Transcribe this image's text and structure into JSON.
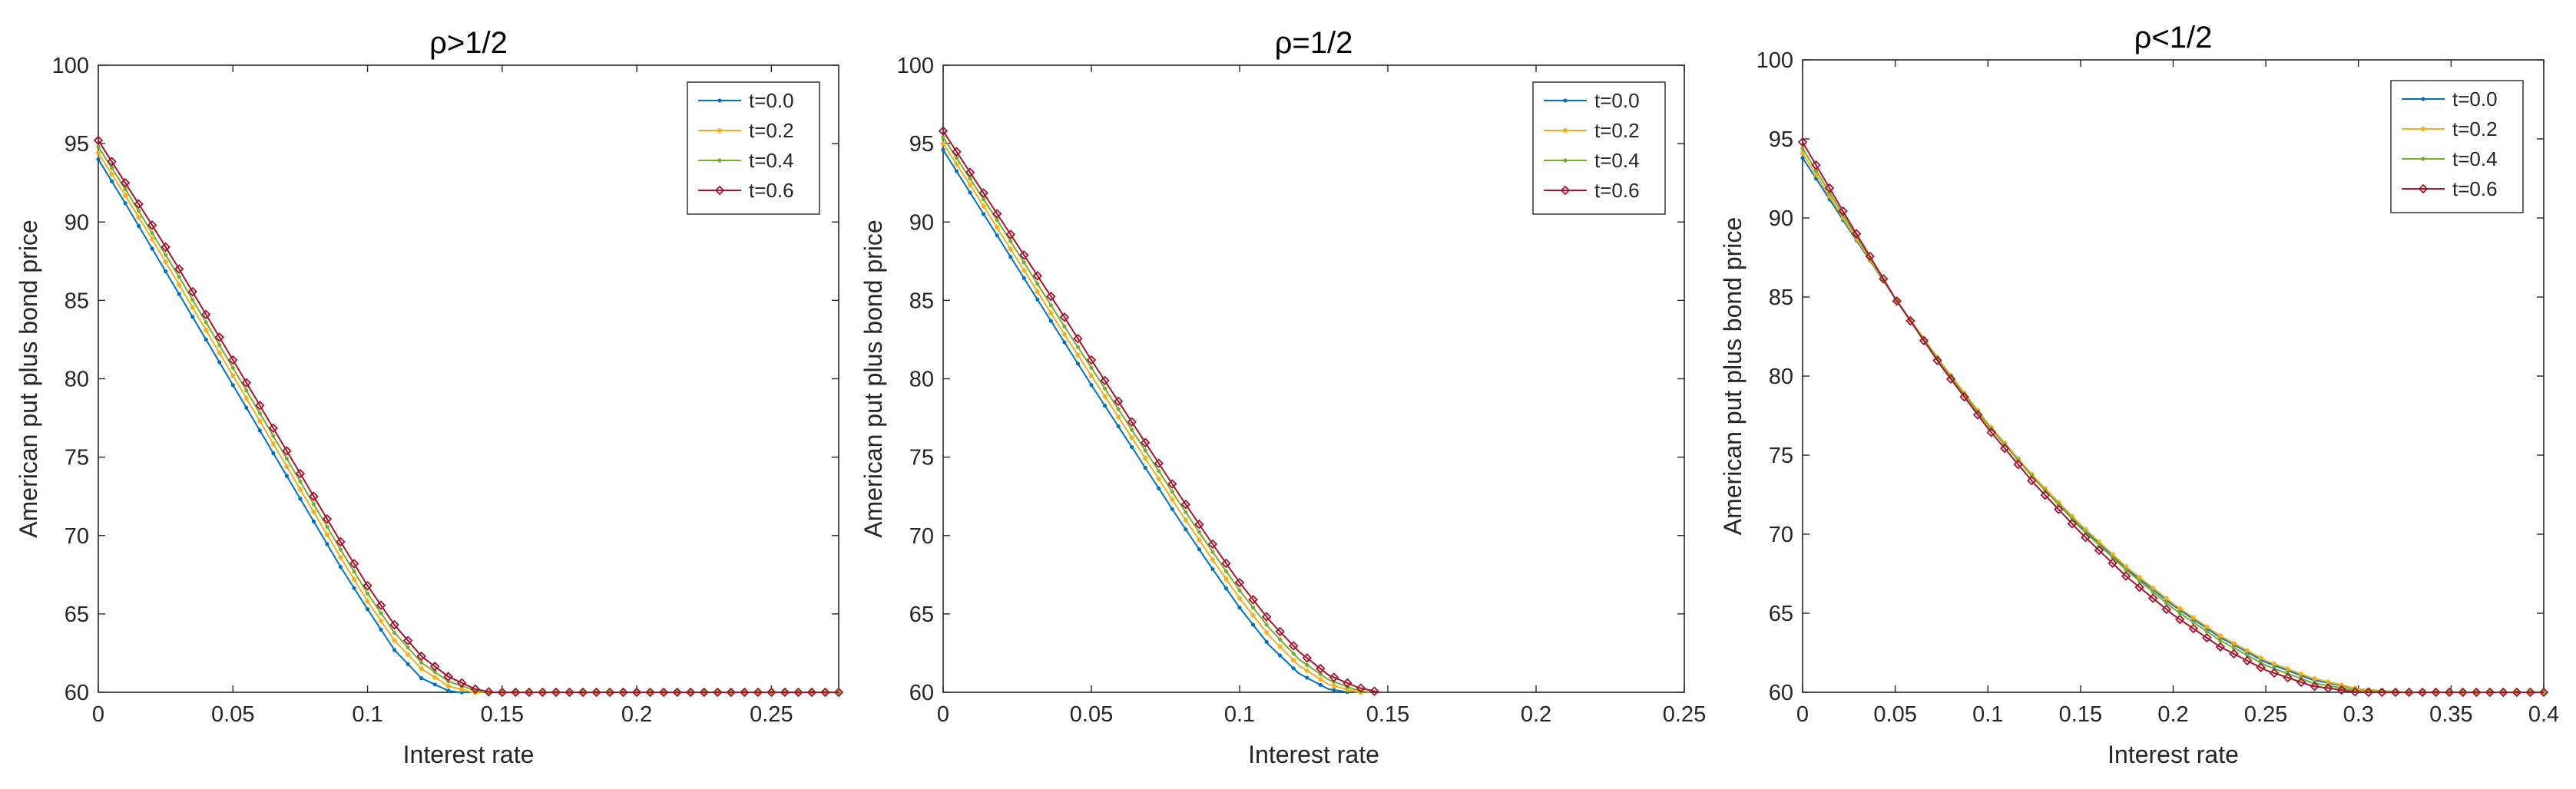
{
  "chart_data": [
    {
      "type": "line",
      "title": "ρ>1/2",
      "xlabel": "Interest rate",
      "ylabel": "American put plus bond price",
      "xlim": [
        0,
        0.275
      ],
      "ylim": [
        60,
        100
      ],
      "xticks": [
        0,
        0.05,
        0.1,
        0.15,
        0.2,
        0.25
      ],
      "xtick_labels": [
        "0",
        "0.05",
        "0.1",
        "0.15",
        "0.2",
        "0.25"
      ],
      "yticks": [
        60,
        65,
        70,
        75,
        80,
        85,
        90,
        95,
        100
      ],
      "ytick_labels": [
        "60",
        "65",
        "70",
        "75",
        "80",
        "85",
        "90",
        "95",
        "100"
      ],
      "legend_position": "top-right",
      "grid": false,
      "series": [
        {
          "name": "t=0.0",
          "color": "#0072BD",
          "marker": "point",
          "x": [
            0,
            0.01,
            0.02,
            0.03,
            0.04,
            0.05,
            0.06,
            0.07,
            0.08,
            0.09,
            0.1,
            0.11,
            0.12,
            0.13,
            0.134,
            0.14,
            0.15,
            0.2,
            0.25,
            0.275
          ],
          "y": [
            94.0,
            91.2,
            88.3,
            85.4,
            82.5,
            79.6,
            76.7,
            73.8,
            70.9,
            68.0,
            65.3,
            62.7,
            60.9,
            60.1,
            60.0,
            60.0,
            60.0,
            60.0,
            60.0,
            60.0
          ]
        },
        {
          "name": "t=0.2",
          "color": "#EDB120",
          "marker": "asterisk",
          "x": [
            0,
            0.01,
            0.02,
            0.03,
            0.04,
            0.05,
            0.06,
            0.07,
            0.08,
            0.09,
            0.1,
            0.11,
            0.12,
            0.13,
            0.139,
            0.15,
            0.2,
            0.25,
            0.275
          ],
          "y": [
            94.4,
            91.7,
            88.9,
            86.0,
            83.1,
            80.2,
            77.3,
            74.4,
            71.5,
            68.6,
            65.8,
            63.3,
            61.5,
            60.4,
            60.0,
            60.0,
            60.0,
            60.0,
            60.0
          ]
        },
        {
          "name": "t=0.4",
          "color": "#77AC30",
          "marker": "point",
          "x": [
            0,
            0.01,
            0.02,
            0.03,
            0.04,
            0.05,
            0.06,
            0.07,
            0.08,
            0.09,
            0.1,
            0.11,
            0.12,
            0.13,
            0.14,
            0.143,
            0.15,
            0.2,
            0.25,
            0.275
          ],
          "y": [
            94.8,
            92.1,
            89.3,
            86.5,
            83.6,
            80.7,
            77.8,
            74.9,
            72.0,
            69.1,
            66.3,
            63.8,
            61.9,
            60.7,
            60.1,
            60.0,
            60.0,
            60.0,
            60.0,
            60.0
          ]
        },
        {
          "name": "t=0.6",
          "color": "#A2142F",
          "marker": "diamond",
          "x": [
            0,
            0.01,
            0.02,
            0.03,
            0.04,
            0.05,
            0.06,
            0.07,
            0.08,
            0.09,
            0.1,
            0.11,
            0.12,
            0.13,
            0.14,
            0.146,
            0.15,
            0.2,
            0.25,
            0.275
          ],
          "y": [
            95.2,
            92.5,
            89.8,
            87.0,
            84.1,
            81.2,
            78.3,
            75.4,
            72.5,
            69.6,
            66.8,
            64.3,
            62.3,
            61.0,
            60.2,
            60.0,
            60.0,
            60.0,
            60.0,
            60.0
          ]
        }
      ]
    },
    {
      "type": "line",
      "title": "ρ=1/2",
      "xlabel": "Interest rate",
      "ylabel": "American put plus bond price",
      "xlim": [
        0,
        0.25
      ],
      "ylim": [
        60,
        100
      ],
      "xticks": [
        0,
        0.05,
        0.1,
        0.15,
        0.2,
        0.25
      ],
      "xtick_labels": [
        "0",
        "0.05",
        "0.1",
        "0.15",
        "0.2",
        "0.25"
      ],
      "yticks": [
        60,
        65,
        70,
        75,
        80,
        85,
        90,
        95,
        100
      ],
      "ytick_labels": [
        "60",
        "65",
        "70",
        "75",
        "80",
        "85",
        "90",
        "95",
        "100"
      ],
      "legend_position": "top-right",
      "grid": false,
      "series": [
        {
          "name": "t=0.0",
          "color": "#0072BD",
          "marker": "point",
          "x": [
            0,
            0.01,
            0.02,
            0.03,
            0.04,
            0.05,
            0.06,
            0.07,
            0.08,
            0.09,
            0.1,
            0.11,
            0.12,
            0.13,
            0.137
          ],
          "y": [
            94.6,
            91.6,
            88.6,
            85.6,
            82.6,
            79.6,
            76.7,
            73.8,
            70.9,
            68.1,
            65.4,
            63.0,
            61.2,
            60.2,
            60.0
          ]
        },
        {
          "name": "t=0.2",
          "color": "#EDB120",
          "marker": "asterisk",
          "x": [
            0,
            0.01,
            0.02,
            0.03,
            0.04,
            0.05,
            0.06,
            0.07,
            0.08,
            0.09,
            0.1,
            0.11,
            0.12,
            0.13,
            0.14,
            0.141
          ],
          "y": [
            95.0,
            92.1,
            89.1,
            86.1,
            83.1,
            80.2,
            77.3,
            74.4,
            71.5,
            68.7,
            66.0,
            63.6,
            61.7,
            60.5,
            60.0,
            60.0
          ]
        },
        {
          "name": "t=0.4",
          "color": "#77AC30",
          "marker": "point",
          "x": [
            0,
            0.01,
            0.02,
            0.03,
            0.04,
            0.05,
            0.06,
            0.07,
            0.08,
            0.09,
            0.1,
            0.11,
            0.12,
            0.13,
            0.14,
            0.144
          ],
          "y": [
            95.4,
            92.5,
            89.6,
            86.6,
            83.6,
            80.7,
            77.8,
            74.9,
            72.0,
            69.2,
            66.5,
            64.1,
            62.1,
            60.8,
            60.1,
            60.0
          ]
        },
        {
          "name": "t=0.6",
          "color": "#A2142F",
          "marker": "diamond",
          "x": [
            0,
            0.01,
            0.02,
            0.03,
            0.04,
            0.05,
            0.06,
            0.07,
            0.08,
            0.09,
            0.1,
            0.11,
            0.12,
            0.13,
            0.14,
            0.147
          ],
          "y": [
            95.8,
            92.9,
            90.0,
            87.1,
            84.2,
            81.2,
            78.3,
            75.4,
            72.5,
            69.7,
            67.0,
            64.6,
            62.6,
            61.1,
            60.3,
            60.0
          ]
        }
      ]
    },
    {
      "type": "line",
      "title": "ρ<1/2",
      "xlabel": "Interest rate",
      "ylabel": "American put plus bond price",
      "xlim": [
        0,
        0.4
      ],
      "ylim": [
        60,
        100
      ],
      "xticks": [
        0,
        0.05,
        0.1,
        0.15,
        0.2,
        0.25,
        0.3,
        0.35,
        0.4
      ],
      "xtick_labels": [
        "0",
        "0.05",
        "0.1",
        "0.15",
        "0.2",
        "0.25",
        "0.3",
        "0.35",
        "0.4"
      ],
      "yticks": [
        60,
        65,
        70,
        75,
        80,
        85,
        90,
        95,
        100
      ],
      "ytick_labels": [
        "60",
        "65",
        "70",
        "75",
        "80",
        "85",
        "90",
        "95",
        "100"
      ],
      "legend_position": "top-right",
      "grid": false,
      "series": [
        {
          "name": "t=0.0",
          "color": "#0072BD",
          "marker": "point",
          "x": [
            0,
            0.025,
            0.05,
            0.075,
            0.1,
            0.125,
            0.15,
            0.175,
            0.2,
            0.225,
            0.25,
            0.275,
            0.3,
            0.325,
            0.35,
            0.375,
            0.4
          ],
          "y": [
            93.8,
            89.3,
            84.9,
            80.8,
            77.0,
            73.6,
            70.5,
            67.8,
            65.5,
            63.5,
            61.9,
            60.8,
            60.2,
            60.0,
            60.0,
            60.0,
            60.0
          ]
        },
        {
          "name": "t=0.2",
          "color": "#EDB120",
          "marker": "asterisk",
          "x": [
            0,
            0.025,
            0.05,
            0.075,
            0.1,
            0.125,
            0.15,
            0.175,
            0.2,
            0.225,
            0.25,
            0.275,
            0.3,
            0.325,
            0.35,
            0.375,
            0.4
          ],
          "y": [
            94.1,
            89.4,
            84.9,
            80.8,
            77.0,
            73.6,
            70.6,
            67.9,
            65.6,
            63.6,
            62.0,
            60.9,
            60.2,
            60.0,
            60.0,
            60.0,
            60.0
          ]
        },
        {
          "name": "t=0.4",
          "color": "#77AC30",
          "marker": "point",
          "x": [
            0,
            0.025,
            0.05,
            0.075,
            0.1,
            0.125,
            0.15,
            0.175,
            0.2,
            0.225,
            0.25,
            0.275,
            0.3,
            0.325,
            0.35,
            0.375,
            0.4
          ],
          "y": [
            94.4,
            89.6,
            84.9,
            80.7,
            76.9,
            73.5,
            70.4,
            67.7,
            65.3,
            63.3,
            61.7,
            60.6,
            60.1,
            60.0,
            60.0,
            60.0,
            60.0
          ]
        },
        {
          "name": "t=0.6",
          "color": "#A2142F",
          "marker": "diamond",
          "x": [
            0,
            0.025,
            0.05,
            0.075,
            0.1,
            0.125,
            0.15,
            0.175,
            0.2,
            0.225,
            0.25,
            0.275,
            0.3,
            0.325,
            0.35,
            0.375,
            0.4
          ],
          "y": [
            94.8,
            89.8,
            84.9,
            80.6,
            76.7,
            73.2,
            70.1,
            67.3,
            64.9,
            62.9,
            61.4,
            60.4,
            60.0,
            60.0,
            60.0,
            60.0,
            60.0
          ]
        }
      ]
    }
  ]
}
